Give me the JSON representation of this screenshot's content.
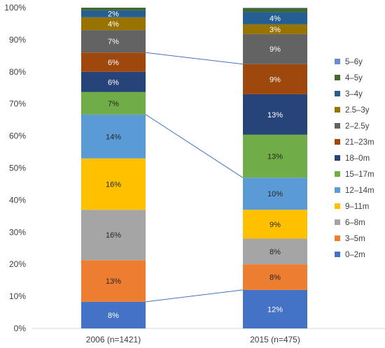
{
  "chart_data": {
    "type": "bar",
    "stacked": true,
    "percent": true,
    "categories": [
      "2006 (n=1421)",
      "2015 (n=475)"
    ],
    "ylim": [
      0,
      100
    ],
    "yticks": [
      "0%",
      "10%",
      "20%",
      "30%",
      "40%",
      "50%",
      "60%",
      "70%",
      "80%",
      "90%",
      "100%"
    ],
    "grid": false,
    "legend_position": "right",
    "series": [
      {
        "name": "0–2m",
        "color": "#4472C4",
        "values": [
          8.3,
          12.0
        ],
        "labels": [
          "8%",
          "12%"
        ]
      },
      {
        "name": "3–5m",
        "color": "#ED7D31",
        "values": [
          13.0,
          8.0
        ],
        "labels": [
          "13%",
          "8%"
        ]
      },
      {
        "name": "6–8m",
        "color": "#A5A5A5",
        "values": [
          15.7,
          8.0
        ],
        "labels": [
          "16%",
          "8%"
        ]
      },
      {
        "name": "9–11m",
        "color": "#FFC000",
        "values": [
          16.0,
          9.0
        ],
        "labels": [
          "16%",
          "9%"
        ]
      },
      {
        "name": "12–14m",
        "color": "#5B9BD5",
        "values": [
          13.7,
          10.0
        ],
        "labels": [
          "14%",
          "10%"
        ]
      },
      {
        "name": "15–17m",
        "color": "#70AD47",
        "values": [
          7.0,
          13.4
        ],
        "labels": [
          "7%",
          "13%"
        ]
      },
      {
        "name": "18–0m",
        "color": "#264478",
        "values": [
          6.3,
          12.6
        ],
        "labels": [
          "6%",
          "13%"
        ]
      },
      {
        "name": "21–23m",
        "color": "#9E480E",
        "values": [
          6.0,
          9.4
        ],
        "labels": [
          "6%",
          "9%"
        ]
      },
      {
        "name": "2–2.5y",
        "color": "#636363",
        "values": [
          7.0,
          9.4
        ],
        "labels": [
          "7%",
          "9%"
        ]
      },
      {
        "name": "2.5–3y",
        "color": "#997300",
        "values": [
          4.0,
          3.0
        ],
        "labels": [
          "4%",
          "3%"
        ]
      },
      {
        "name": "3–4y",
        "color": "#255E91",
        "values": [
          2.2,
          3.8
        ],
        "labels": [
          "2%",
          "4%"
        ]
      },
      {
        "name": "4–5y",
        "color": "#43682B",
        "values": [
          0.8,
          1.2
        ],
        "labels": [
          "",
          ""
        ]
      },
      {
        "name": "5–6y",
        "color": "#698ED0",
        "values": [
          0.0,
          0.2
        ],
        "labels": [
          "",
          ""
        ]
      }
    ],
    "connectors": [
      {
        "series_index": 0
      },
      {
        "series_index": 4
      },
      {
        "series_index": 7
      }
    ]
  }
}
